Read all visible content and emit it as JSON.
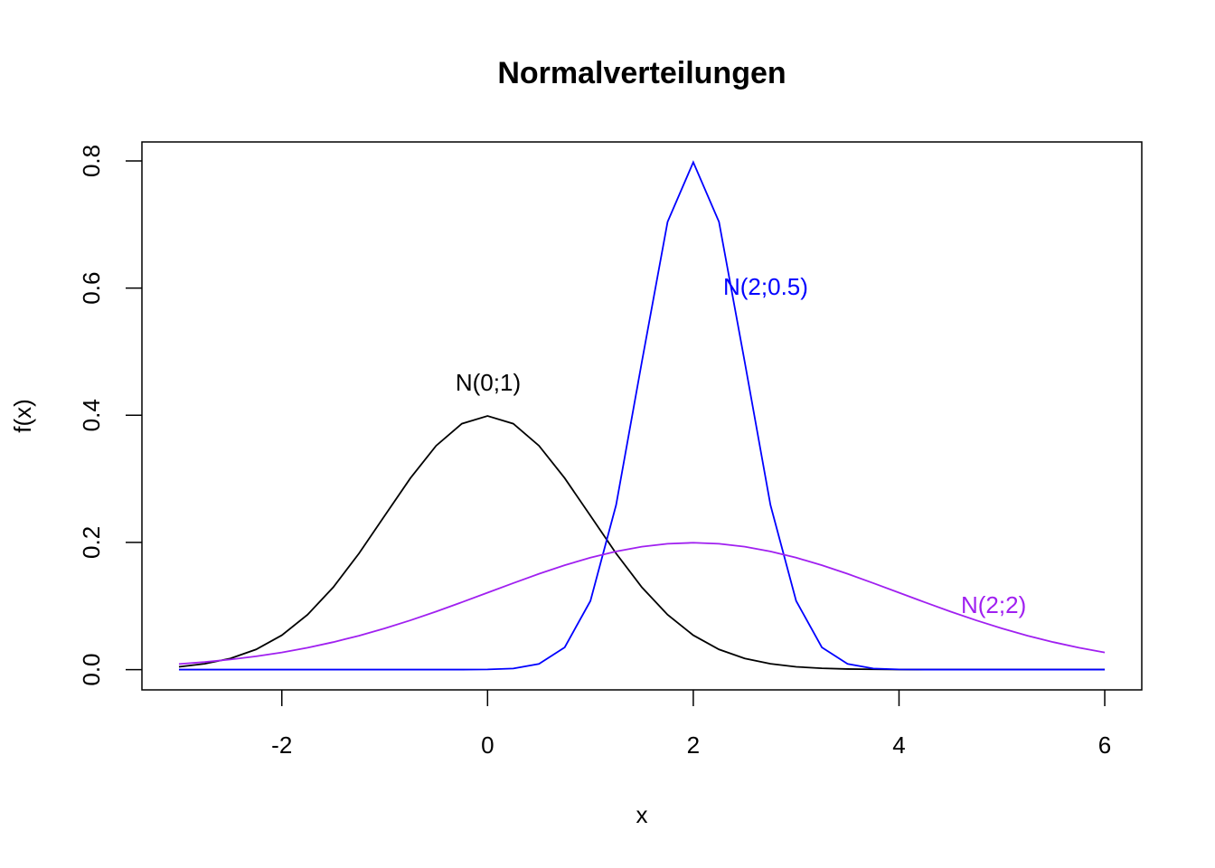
{
  "chart_data": {
    "type": "line",
    "title": "Normalverteilungen",
    "x_label": "x",
    "y_label": "f(x)",
    "x": [
      -3,
      -2.75,
      -2.5,
      -2.25,
      -2,
      -1.75,
      -1.5,
      -1.25,
      -1,
      -0.75,
      -0.5,
      -0.25,
      0,
      0.25,
      0.5,
      0.75,
      1,
      1.25,
      1.5,
      1.75,
      2,
      2.25,
      2.5,
      2.75,
      3,
      3.25,
      3.5,
      3.75,
      4,
      4.25,
      4.5,
      4.75,
      5,
      5.25,
      5.5,
      5.75,
      6
    ],
    "series": [
      {
        "name": "N(0;1)",
        "color": "#000000",
        "values": [
          0.0044,
          0.0091,
          0.0175,
          0.0317,
          0.054,
          0.0863,
          0.1295,
          0.1826,
          0.242,
          0.3011,
          0.3521,
          0.3867,
          0.3989,
          0.3867,
          0.3521,
          0.3011,
          0.242,
          0.1826,
          0.1295,
          0.0863,
          0.054,
          0.0317,
          0.0175,
          0.0091,
          0.0044,
          0.002,
          0.0009,
          0.0004,
          0.0001,
          0,
          0,
          0,
          0,
          0,
          0,
          0,
          0
        ]
      },
      {
        "name": "N(2;0.5)",
        "color": "#0000ff",
        "values": [
          0,
          0,
          0,
          0,
          0,
          0,
          0,
          0,
          0,
          0,
          0,
          0,
          0.0003,
          0.0017,
          0.0089,
          0.035,
          0.108,
          0.259,
          0.4839,
          0.7041,
          0.7979,
          0.7041,
          0.4839,
          0.259,
          0.108,
          0.035,
          0.0089,
          0.0017,
          0.0003,
          0,
          0,
          0,
          0,
          0,
          0,
          0,
          0
        ]
      },
      {
        "name": "N(2;2)",
        "color": "#a020f0",
        "values": [
          0.0088,
          0.0119,
          0.0159,
          0.0209,
          0.027,
          0.0344,
          0.0432,
          0.0533,
          0.0648,
          0.0775,
          0.0913,
          0.1059,
          0.121,
          0.136,
          0.1506,
          0.1641,
          0.176,
          0.1859,
          0.1933,
          0.1979,
          0.1995,
          0.1979,
          0.1933,
          0.1859,
          0.176,
          0.1641,
          0.1506,
          0.136,
          0.121,
          0.1059,
          0.0913,
          0.0775,
          0.0648,
          0.0533,
          0.0432,
          0.0344,
          0.027
        ]
      }
    ],
    "xlim": [
      -3.36,
      6.36
    ],
    "ylim": [
      -0.0319,
      0.8298
    ],
    "xticks": [
      -2,
      0,
      2,
      4,
      6
    ],
    "yticks": [
      {
        "value": 0,
        "label": "0.0"
      },
      {
        "value": 0.2,
        "label": "0.2"
      },
      {
        "value": 0.4,
        "label": "0.4"
      },
      {
        "value": 0.6,
        "label": "0.6"
      },
      {
        "value": 0.8,
        "label": "0.8"
      }
    ]
  }
}
